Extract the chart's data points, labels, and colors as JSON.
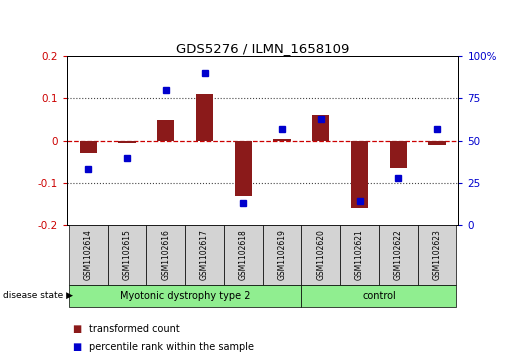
{
  "title": "GDS5276 / ILMN_1658109",
  "samples": [
    "GSM1102614",
    "GSM1102615",
    "GSM1102616",
    "GSM1102617",
    "GSM1102618",
    "GSM1102619",
    "GSM1102620",
    "GSM1102621",
    "GSM1102622",
    "GSM1102623"
  ],
  "red_bars": [
    -0.03,
    -0.005,
    0.05,
    0.11,
    -0.13,
    0.005,
    0.06,
    -0.16,
    -0.065,
    -0.01
  ],
  "blue_dots": [
    33,
    40,
    80,
    90,
    13,
    57,
    63,
    14,
    28,
    57
  ],
  "groups": [
    {
      "label": "Myotonic dystrophy type 2",
      "start": 0,
      "end": 6
    },
    {
      "label": "control",
      "start": 6,
      "end": 10
    }
  ],
  "bar_color": "#8B1A1A",
  "dot_color": "#0000CD",
  "ylim_left": [
    -0.2,
    0.2
  ],
  "ylim_right": [
    0,
    100
  ],
  "yticks_left": [
    -0.2,
    -0.1,
    0.0,
    0.1,
    0.2
  ],
  "yticks_right": [
    0,
    25,
    50,
    75,
    100
  ],
  "ytick_labels_right": [
    "0",
    "25",
    "50",
    "75",
    "100%"
  ],
  "disease_state_label": "disease state",
  "legend": [
    {
      "color": "#8B1A1A",
      "label": "transformed count"
    },
    {
      "color": "#0000CD",
      "label": "percentile rank within the sample"
    }
  ],
  "background_color": "#ffffff",
  "zero_line_color": "#CC0000",
  "tick_label_color_left": "#CC0000",
  "tick_label_color_right": "#0000CD",
  "box_color": "#D3D3D3",
  "green_color": "#90EE90",
  "dotted_line_color": "#444444"
}
